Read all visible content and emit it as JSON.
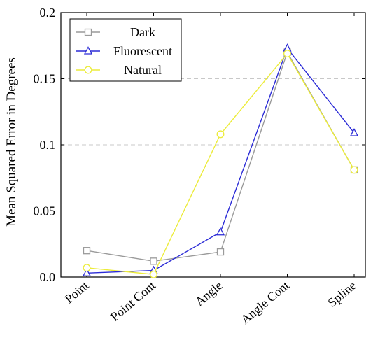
{
  "chart_data": {
    "type": "line",
    "categories": [
      "Point",
      "Point Cont",
      "Angle",
      "Angle Cont",
      "Spline"
    ],
    "ylabel": "Mean Squared Error in Degrees",
    "xlabel": "",
    "ylim": [
      0,
      0.2
    ],
    "yticks": [
      0,
      0.05,
      0.1,
      0.15,
      0.2
    ],
    "ytick_labels": [
      "0.0",
      "0.05",
      "0.1",
      "0.15",
      "0.2"
    ],
    "grid": "horizontal dashed",
    "legend_position": "top-left",
    "series": [
      {
        "name": "Dark",
        "color": "#9a9a9a",
        "marker": "square",
        "values": [
          0.02,
          0.012,
          0.019,
          0.17,
          0.081
        ]
      },
      {
        "name": "Fluorescent",
        "color": "#2b2bd6",
        "marker": "triangle",
        "values": [
          0.003,
          0.005,
          0.034,
          0.173,
          0.109
        ]
      },
      {
        "name": "Natural",
        "color": "#ecec3a",
        "marker": "circle",
        "values": [
          0.007,
          0.002,
          0.108,
          0.169,
          0.081
        ]
      }
    ]
  }
}
